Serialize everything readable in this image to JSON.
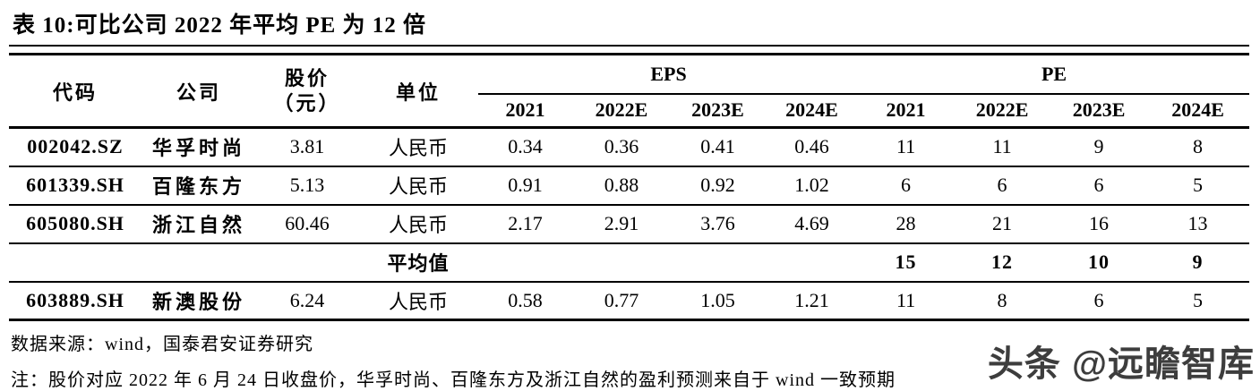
{
  "title": "表 10:可比公司 2022 年平均 PE 为 12 倍",
  "table": {
    "header": {
      "code": "代码",
      "company": "公司",
      "price_line1": "股价",
      "price_line2": "（元）",
      "unit": "单位",
      "eps_group": "EPS",
      "pe_group": "PE",
      "years": [
        "2021",
        "2022E",
        "2023E",
        "2024E"
      ]
    },
    "rows": [
      {
        "code": "002042.SZ",
        "company": "华孚时尚",
        "price": "3.81",
        "unit": "人民币",
        "eps": [
          "0.34",
          "0.36",
          "0.41",
          "0.46"
        ],
        "pe": [
          "11",
          "11",
          "9",
          "8"
        ],
        "bold": false
      },
      {
        "code": "601339.SH",
        "company": "百隆东方",
        "price": "5.13",
        "unit": "人民币",
        "eps": [
          "0.91",
          "0.88",
          "0.92",
          "1.02"
        ],
        "pe": [
          "6",
          "6",
          "6",
          "5"
        ],
        "bold": false
      },
      {
        "code": "605080.SH",
        "company": "浙江自然",
        "price": "60.46",
        "unit": "人民币",
        "eps": [
          "2.17",
          "2.91",
          "3.76",
          "4.69"
        ],
        "pe": [
          "28",
          "21",
          "16",
          "13"
        ],
        "bold": false
      },
      {
        "code": "",
        "company": "",
        "price": "",
        "unit": "平均值",
        "eps": [
          "",
          "",
          "",
          ""
        ],
        "pe": [
          "15",
          "12",
          "10",
          "9"
        ],
        "bold": true
      },
      {
        "code": "603889.SH",
        "company": "新澳股份",
        "price": "6.24",
        "unit": "人民币",
        "eps": [
          "0.58",
          "0.77",
          "1.05",
          "1.21"
        ],
        "pe": [
          "11",
          "8",
          "6",
          "5"
        ],
        "bold": false
      }
    ]
  },
  "source": "数据来源：wind，国泰君安证券研究",
  "note": "注：股价对应 2022 年 6 月 24 日收盘价，华孚时尚、百隆东方及浙江自然的盈利预测来自于 wind 一致预期",
  "watermark": "头条 @远瞻智库"
}
